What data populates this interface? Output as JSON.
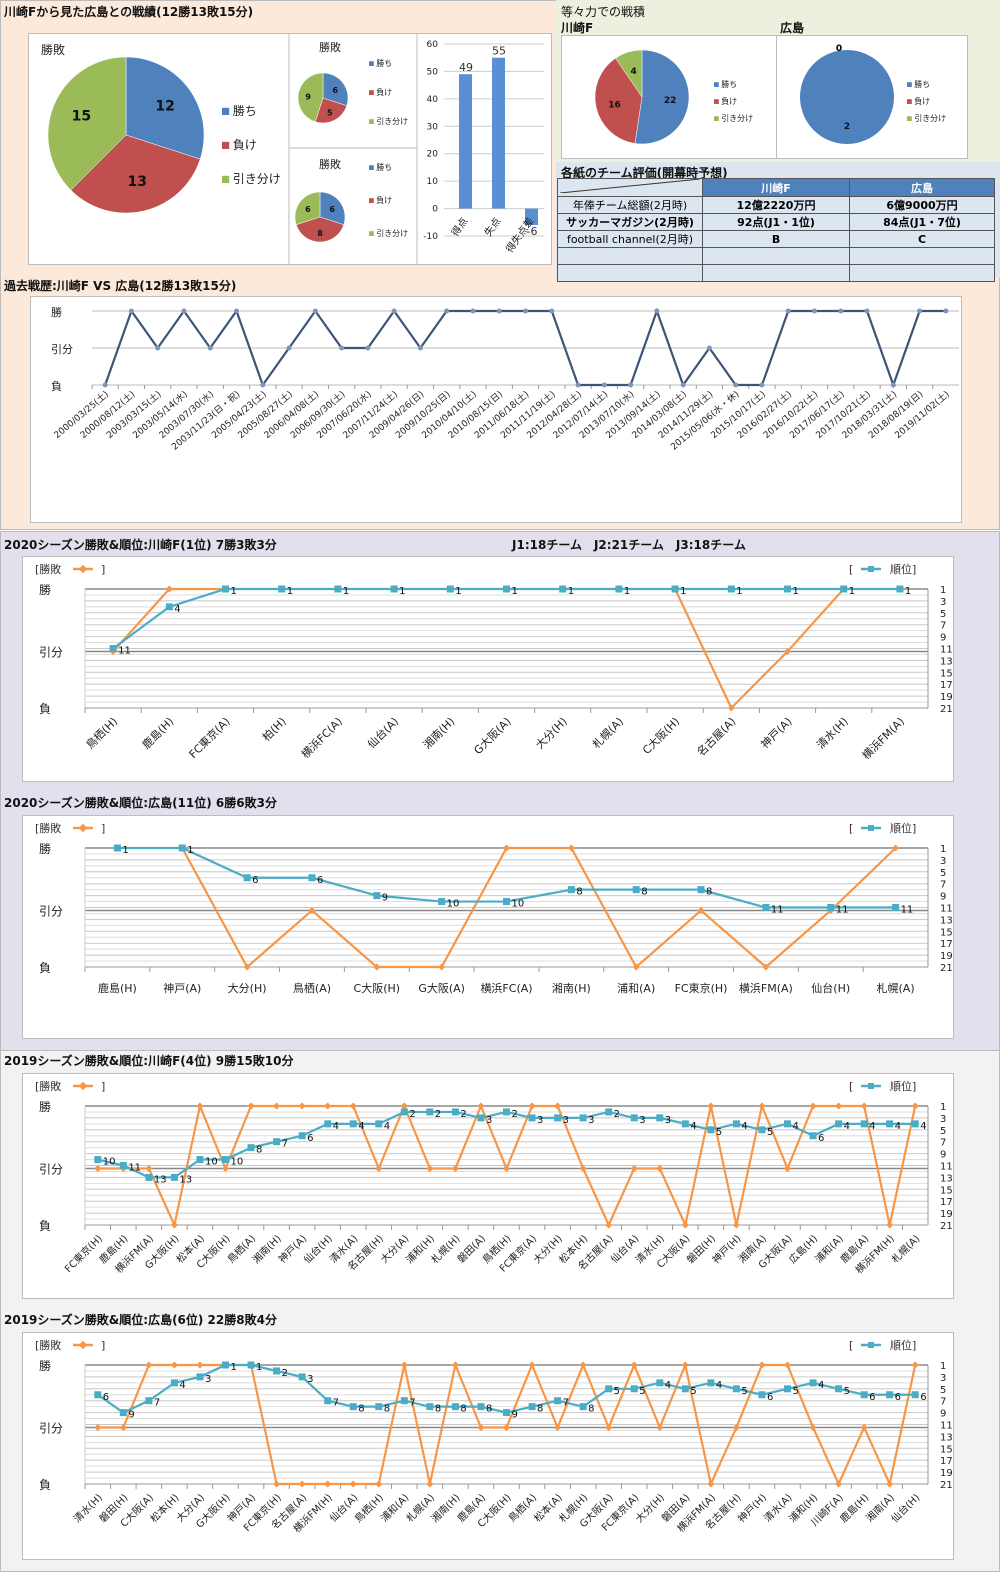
{
  "colors": {
    "win": "#4f81bd",
    "loss": "#c0504d",
    "draw": "#9bbb59",
    "history_line": "#3b5577",
    "result_line": "#f79646",
    "rank_line": "#4bacc6",
    "top_bg": "#fde9d9",
    "season2020_bg": "#e4dfec",
    "season2019_bg": "#f2f2f2",
    "right_top_bg": "#ebf1de",
    "table_header": "#4f81bd",
    "table_cell": "#dce6f1"
  },
  "header": {
    "title": "川崎Fから見た広島との戦績(12勝13敗15分)"
  },
  "equal_header": {
    "title": "等々力での戦積",
    "left_team": "川崎F",
    "right_team": "広島"
  },
  "legend_labels": {
    "win": "勝ち",
    "loss": "負け",
    "draw": "引き分け"
  },
  "eval": {
    "title": "各紙のチーム評価(開幕時予想)",
    "columns": [
      "",
      "川崎F",
      "広島"
    ],
    "rows": [
      [
        "年俸チーム総額(2月時)",
        "12億2220万円",
        "6億9000万円"
      ],
      [
        "サッカーマガジン(2月時)",
        "92点(J1・1位)",
        "84点(J1・7位)"
      ],
      [
        "football channel(2月時)",
        "B",
        "C"
      ],
      [
        "",
        "",
        ""
      ],
      [
        "",
        "",
        ""
      ]
    ]
  },
  "history_title": "過去戦歴:川崎F VS 広島(12勝13敗15分)",
  "s2020k_title": "2020シーズン勝敗&順位:川崎F(1位) 7勝3敗3分",
  "league_info": "J1:18チーム　J2:21チーム　J3:18チーム",
  "s2020h_title": "2020シーズン勝敗&順位:広島(11位) 6勝6敗3分",
  "s2019k_title": "2019シーズン勝敗&順位:川崎F(4位) 9勝15敗10分",
  "s2019h_title": "2019シーズン勝敗&順位:広島(6位) 22勝8敗4分",
  "season_legend": {
    "result": "[勝敗",
    "result_close": "]",
    "rank_open": "[",
    "rank": "順位]"
  },
  "chart_data": [
    {
      "id": "overall_pie",
      "type": "pie",
      "title": "勝敗",
      "categories": [
        "勝ち",
        "負け",
        "引き分け"
      ],
      "values": [
        12,
        13,
        15
      ]
    },
    {
      "id": "home_pie",
      "type": "pie",
      "title": "勝敗",
      "categories": [
        "勝ち",
        "負け",
        "引き分け"
      ],
      "values": [
        6,
        5,
        9
      ]
    },
    {
      "id": "away_pie",
      "type": "pie",
      "title": "勝敗",
      "categories": [
        "勝ち",
        "負け",
        "引き分け"
      ],
      "values": [
        6,
        8,
        6
      ]
    },
    {
      "id": "goals_bar",
      "type": "bar",
      "categories": [
        "得点",
        "失点",
        "得失点差"
      ],
      "values": [
        49,
        55,
        -6
      ],
      "ylim": [
        -10,
        60
      ],
      "yticks": [
        -10,
        0,
        10,
        20,
        30,
        40,
        50,
        60
      ]
    },
    {
      "id": "todoroki_kawasaki_pie",
      "type": "pie",
      "title": "川崎F",
      "categories": [
        "勝ち",
        "負け",
        "引き分け"
      ],
      "values": [
        22,
        16,
        4
      ]
    },
    {
      "id": "todoroki_hiroshima_pie",
      "type": "pie",
      "title": "広島",
      "categories": [
        "勝ち",
        "負け",
        "引き分け"
      ],
      "values": [
        2,
        0,
        0
      ]
    },
    {
      "id": "history",
      "type": "line",
      "title": "過去戦歴:川崎F VS 広島(12勝13敗15分)",
      "ylabels": [
        "負",
        "引分",
        "勝"
      ],
      "x": [
        "2000/03/25(土)",
        "2000/08/12(土)",
        "2003/03/15(土)",
        "2003/05/14(水)",
        "2003/07/30(水)",
        "2003/11/23(日・祝)",
        "2005/04/23(土)",
        "2005/08/27(土)",
        "2006/04/08(土)",
        "2006/09/30(土)",
        "2007/06/20(水)",
        "2007/11/24(土)",
        "2009/04/26(日)",
        "2009/10/25(日)",
        "2010/04/10(土)",
        "2010/08/15(日)",
        "2011/06/18(土)",
        "2011/11/19(土)",
        "2012/04/28(土)",
        "2012/07/14(土)",
        "2013/07/10(水)",
        "2013/09/14(土)",
        "2014/03/08(土)",
        "2014/11/29(土)",
        "2015/05/06(水・休)",
        "2015/10/17(土)",
        "2016/02/27(土)",
        "2016/10/22(土)",
        "2017/06/17(土)",
        "2017/10/21(土)",
        "2018/03/31(土)",
        "2018/08/19(日)",
        "2019/11/02(土)"
      ],
      "values": [
        0,
        2,
        1,
        2,
        1,
        2,
        0,
        1,
        2,
        1,
        1,
        2,
        1,
        2,
        2,
        2,
        2,
        2,
        0,
        0,
        0,
        2,
        0,
        1,
        0,
        0,
        2,
        2,
        2,
        2,
        0,
        2,
        2
      ]
    },
    {
      "id": "s2020k",
      "type": "line",
      "rotate": true,
      "ylabels": [
        "負",
        "引分",
        "勝"
      ],
      "rank_ticks": [
        1,
        3,
        5,
        7,
        9,
        11,
        13,
        15,
        17,
        19,
        21
      ],
      "x": [
        "鳥栖(H)",
        "鹿島(H)",
        "FC東京(A)",
        "柏(H)",
        "横浜FC(A)",
        "仙台(A)",
        "湘南(H)",
        "G大阪(A)",
        "大分(H)",
        "札幌(A)",
        "C大阪(H)",
        "名古屋(A)",
        "神戸(A)",
        "清水(H)",
        "横浜FM(A)"
      ],
      "series": [
        {
          "name": "勝敗",
          "values": [
            1,
            2,
            2,
            null,
            null,
            null,
            null,
            null,
            null,
            null,
            2,
            0,
            1,
            2,
            null
          ]
        },
        {
          "name": "順位",
          "values": [
            11,
            4,
            1,
            1,
            1,
            1,
            1,
            1,
            1,
            1,
            1,
            1,
            1,
            1,
            1
          ]
        }
      ]
    },
    {
      "id": "s2020h",
      "type": "line",
      "rotate": false,
      "ylabels": [
        "負",
        "引分",
        "勝"
      ],
      "rank_ticks": [
        1,
        3,
        5,
        7,
        9,
        11,
        13,
        15,
        17,
        19,
        21
      ],
      "x": [
        "鹿島(H)",
        "神戸(A)",
        "大分(H)",
        "鳥栖(A)",
        "C大阪(H)",
        "G大阪(A)",
        "横浜FC(A)",
        "湘南(H)",
        "浦和(A)",
        "FC東京(H)",
        "横浜FM(A)",
        "仙台(H)",
        "札幌(A)"
      ],
      "series": [
        {
          "name": "勝敗",
          "values": [
            null,
            2,
            0,
            1,
            0,
            0,
            2,
            2,
            0,
            1,
            0,
            1,
            2
          ]
        },
        {
          "name": "順位",
          "values": [
            1,
            1,
            6,
            6,
            9,
            10,
            10,
            8,
            8,
            8,
            11,
            11,
            11
          ]
        }
      ]
    },
    {
      "id": "s2019k",
      "type": "line",
      "rotate": true,
      "ylabels": [
        "負",
        "引分",
        "勝"
      ],
      "rank_ticks": [
        1,
        3,
        5,
        7,
        9,
        11,
        13,
        15,
        17,
        19,
        21
      ],
      "x": [
        "FC東京(H)",
        "鹿島(H)",
        "横浜FM(A)",
        "G大阪(H)",
        "松本(A)",
        "C大阪(H)",
        "鳥栖(A)",
        "湘南(H)",
        "神戸(A)",
        "仙台(H)",
        "清水(A)",
        "名古屋(H)",
        "大分(A)",
        "浦和(H)",
        "札幌(H)",
        "磐田(A)",
        "鳥栖(H)",
        "FC東京(A)",
        "大分(H)",
        "松本(H)",
        "名古屋(A)",
        "仙台(A)",
        "清水(H)",
        "C大阪(A)",
        "磐田(H)",
        "神戸(H)",
        "湘南(A)",
        "G大阪(A)",
        "広島(H)",
        "浦和(A)",
        "鹿島(A)",
        "横浜FM(H)",
        "札幌(A)"
      ],
      "series": [
        {
          "name": "勝敗",
          "values": [
            1,
            1,
            1,
            0,
            2,
            1,
            2,
            2,
            2,
            2,
            2,
            1,
            2,
            1,
            1,
            2,
            1,
            2,
            2,
            1,
            0,
            1,
            1,
            0,
            2,
            0,
            2,
            1,
            2,
            2,
            2,
            0,
            2
          ]
        },
        {
          "name": "順位",
          "values": [
            10,
            11,
            13,
            13,
            10,
            10,
            8,
            7,
            6,
            4,
            4,
            4,
            2,
            2,
            2,
            3,
            2,
            3,
            3,
            3,
            2,
            3,
            3,
            4,
            5,
            4,
            5,
            4,
            6,
            4,
            4,
            4,
            4
          ]
        }
      ]
    },
    {
      "id": "s2019h",
      "type": "line",
      "rotate": true,
      "ylabels": [
        "負",
        "引分",
        "勝"
      ],
      "rank_ticks": [
        1,
        3,
        5,
        7,
        9,
        11,
        13,
        15,
        17,
        19,
        21
      ],
      "x": [
        "清水(H)",
        "磐田(H)",
        "C大阪(A)",
        "松本(H)",
        "大分(A)",
        "G大阪(H)",
        "神戸(A)",
        "FC東京(H)",
        "名古屋(A)",
        "横浜FM(H)",
        "仙台(A)",
        "鳥栖(H)",
        "浦和(A)",
        "札幌(A)",
        "湘南(H)",
        "鹿島(A)",
        "C大阪(H)",
        "鳥栖(A)",
        "松本(A)",
        "札幌(H)",
        "G大阪(A)",
        "FC東京(A)",
        "大分(H)",
        "磐田(A)",
        "横浜FM(A)",
        "名古屋(H)",
        "神戸(H)",
        "清水(A)",
        "浦和(H)",
        "川崎F(A)",
        "鹿島(H)",
        "湘南(A)",
        "仙台(H)"
      ],
      "series": [
        {
          "name": "勝敗",
          "values": [
            1,
            1,
            2,
            2,
            2,
            2,
            2,
            0,
            0,
            0,
            0,
            0,
            2,
            0,
            2,
            1,
            1,
            2,
            1,
            2,
            1,
            2,
            1,
            2,
            0,
            1,
            2,
            2,
            1,
            0,
            1,
            0,
            2
          ]
        },
        {
          "name": "順位",
          "values": [
            6,
            9,
            7,
            4,
            3,
            1,
            1,
            2,
            3,
            7,
            8,
            8,
            7,
            8,
            8,
            8,
            9,
            8,
            7,
            8,
            5,
            5,
            4,
            5,
            4,
            5,
            6,
            5,
            4,
            5,
            6,
            6,
            6
          ]
        }
      ]
    }
  ]
}
